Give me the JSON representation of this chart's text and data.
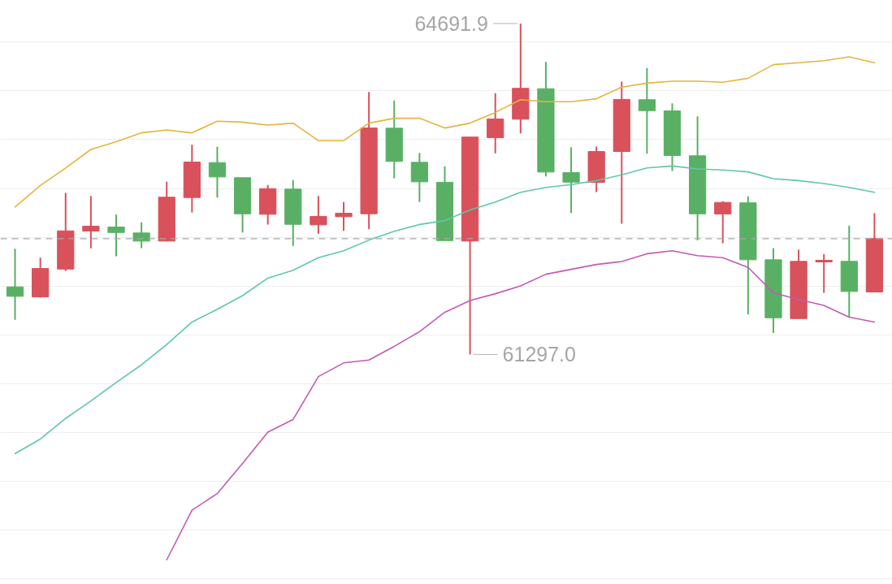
{
  "chart_data": {
    "type": "candlestick",
    "categories": [
      null,
      null,
      null,
      null,
      null,
      null,
      null,
      null,
      null,
      null,
      null,
      null,
      null,
      null,
      null,
      null,
      null,
      null,
      null,
      null,
      null,
      null,
      null,
      null,
      null,
      null,
      null,
      null,
      null,
      null,
      null,
      null,
      null,
      null,
      null
    ],
    "ohlc": [
      [
        61990,
        62382,
        61652,
        61893
      ],
      [
        61888,
        62290,
        61879,
        62179
      ],
      [
        62173,
        62954,
        62152,
        62565
      ],
      [
        62563,
        62923,
        62385,
        62613
      ],
      [
        62604,
        62732,
        62304,
        62548
      ],
      [
        62543,
        62652,
        62388,
        62460
      ],
      [
        62460,
        63068,
        62457,
        62910
      ],
      [
        62907,
        63448,
        62754,
        63271
      ],
      [
        63265,
        63427,
        62907,
        63118
      ],
      [
        63110,
        63110,
        62548,
        62740
      ],
      [
        62735,
        63035,
        62629,
        62998
      ],
      [
        62993,
        63085,
        62410,
        62632
      ],
      [
        62627,
        62923,
        62535,
        62713
      ],
      [
        62710,
        62860,
        62565,
        62746
      ],
      [
        62740,
        63990,
        62582,
        63621
      ],
      [
        63618,
        63902,
        63104,
        63277
      ],
      [
        63268,
        63365,
        62860,
        63068
      ],
      [
        63063,
        63227,
        62465,
        62465
      ],
      [
        62460,
        63527,
        61297.0,
        63527
      ],
      [
        63521,
        63977,
        63360,
        63713
      ],
      [
        63710,
        64691.9,
        63565,
        64027
      ],
      [
        64023,
        64298,
        63123,
        63168
      ],
      [
        63163,
        63421,
        62748,
        63065
      ],
      [
        63063,
        63429,
        62963,
        63379
      ],
      [
        63379,
        64096,
        62638,
        63913
      ],
      [
        63910,
        64235,
        63357,
        63798
      ],
      [
        63796,
        63873,
        63179,
        63338
      ],
      [
        63335,
        63740,
        62468,
        62740
      ],
      [
        62738,
        62868,
        62438,
        62857
      ],
      [
        62852,
        62918,
        61707,
        62268
      ],
      [
        62268,
        62388,
        61518,
        61673
      ],
      [
        61665,
        62371,
        61665,
        62252
      ],
      [
        62246,
        62327,
        61929,
        62263
      ],
      [
        62252,
        62618,
        61679,
        61943
      ],
      [
        61938,
        62746,
        61938,
        62485
      ]
    ],
    "colors": [
      "#59b064",
      "#d9515b",
      "#d9515b",
      "#d9515b",
      "#59b064",
      "#59b064",
      "#d9515b",
      "#d9515b",
      "#59b064",
      "#59b064",
      "#d9515b",
      "#59b064",
      "#d9515b",
      "#d9515b",
      "#d9515b",
      "#59b064",
      "#59b064",
      "#59b064",
      "#d9515b",
      "#d9515b",
      "#d9515b",
      "#59b064",
      "#59b064",
      "#d9515b",
      "#d9515b",
      "#59b064",
      "#59b064",
      "#59b064",
      "#d9515b",
      "#59b064",
      "#59b064",
      "#d9515b",
      "#d9515b",
      "#59b064",
      "#d9515b"
    ],
    "series": [
      {
        "type": "line",
        "color": "#e5b53c",
        "values": [
          62810,
          63030,
          63210,
          63400,
          63480,
          63570,
          63600,
          63570,
          63690,
          63680,
          63650,
          63670,
          63490,
          63490,
          63670,
          63720,
          63720,
          63620,
          63670,
          63780,
          63910,
          63890,
          63890,
          63920,
          64040,
          64080,
          64100,
          64100,
          64090,
          64130,
          64270,
          64290,
          64310,
          64350,
          64290
        ]
      },
      {
        "type": "line",
        "color": "#5dc8ad",
        "values": [
          60280,
          60430,
          60640,
          60820,
          61010,
          61190,
          61400,
          61630,
          61760,
          61900,
          62080,
          62160,
          62290,
          62360,
          62470,
          62560,
          62630,
          62670,
          62780,
          62860,
          62960,
          63010,
          63040,
          63080,
          63140,
          63210,
          63230,
          63200,
          63190,
          63170,
          63100,
          63080,
          63050,
          63010,
          62960
        ]
      },
      {
        "type": "line",
        "color": "#c35ab5",
        "values": [
          null,
          null,
          null,
          null,
          null,
          null,
          59190,
          59700,
          59870,
          60180,
          60500,
          60630,
          61070,
          61210,
          61240,
          61380,
          61530,
          61730,
          61850,
          61920,
          62000,
          62120,
          62170,
          62220,
          62250,
          62330,
          62360,
          62310,
          62290,
          62190,
          61930,
          61860,
          61800,
          61680,
          61630
        ]
      }
    ],
    "ylim": [
      58938,
      64929
    ],
    "yticks": [
      {
        "value": 59000,
        "label": null
      },
      {
        "value": 59500,
        "label": null
      },
      {
        "value": 60000,
        "label": null
      },
      {
        "value": 60500,
        "label": null
      },
      {
        "value": 61000,
        "label": null
      },
      {
        "value": 61500,
        "label": null
      },
      {
        "value": 62000,
        "label": null
      },
      {
        "value": 62500,
        "label": null
      },
      {
        "value": 63000,
        "label": null
      },
      {
        "value": 63500,
        "label": null
      },
      {
        "value": 64000,
        "label": null
      },
      {
        "value": 64500,
        "label": null
      }
    ],
    "grid": "y",
    "tick_labels": false,
    "ref_lines": [
      {
        "axis": "y",
        "value": 62485,
        "color": "#a8a8a8",
        "line_style": "dashed"
      }
    ],
    "annotations": [
      "64691.9",
      "61297.0"
    ]
  }
}
